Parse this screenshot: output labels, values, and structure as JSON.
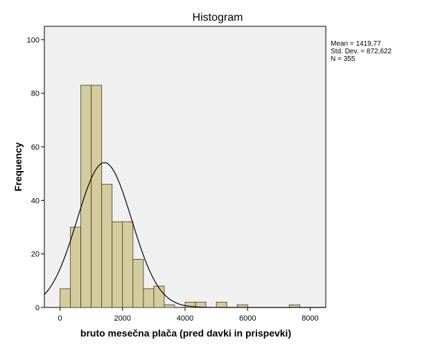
{
  "chart_data": {
    "type": "bar",
    "title": "Histogram",
    "xlabel": "bruto mesečna plača (pred davki in prispevki)",
    "ylabel": "Frequency",
    "xlim": [
      -500,
      8500
    ],
    "ylim": [
      0,
      105
    ],
    "x_ticks": [
      0,
      2000,
      4000,
      6000,
      8000
    ],
    "y_ticks": [
      0,
      20,
      40,
      60,
      80,
      100
    ],
    "bin_width": 333.3,
    "bins": [
      {
        "start": 0,
        "value": 7
      },
      {
        "start": 333.3,
        "value": 30
      },
      {
        "start": 666.7,
        "value": 83
      },
      {
        "start": 1000,
        "value": 83
      },
      {
        "start": 1333.3,
        "value": 46
      },
      {
        "start": 1666.7,
        "value": 32
      },
      {
        "start": 2000,
        "value": 32
      },
      {
        "start": 2333.3,
        "value": 18
      },
      {
        "start": 2666.7,
        "value": 7
      },
      {
        "start": 3000,
        "value": 8
      },
      {
        "start": 3333.3,
        "value": 1
      },
      {
        "start": 3666.7,
        "value": 0
      },
      {
        "start": 4000,
        "value": 2
      },
      {
        "start": 4333.3,
        "value": 2
      },
      {
        "start": 4666.7,
        "value": 0
      },
      {
        "start": 5000,
        "value": 2
      },
      {
        "start": 5333.3,
        "value": 0
      },
      {
        "start": 5666.7,
        "value": 1
      },
      {
        "start": 6000,
        "value": 0
      },
      {
        "start": 6333.3,
        "value": 0
      },
      {
        "start": 6666.7,
        "value": 0
      },
      {
        "start": 7000,
        "value": 0
      },
      {
        "start": 7333.3,
        "value": 1
      }
    ],
    "normal_curve": {
      "mean": 1419.77,
      "std_dev": 872.622,
      "n": 355
    },
    "stats_text": [
      "Mean = 1419,77",
      "Std. Dev. = 872,622",
      "N = 355"
    ],
    "colors": {
      "bar_fill": "#d4cc9c",
      "bar_stroke": "#3a3a2a",
      "plot_bg": "#f0f0f0",
      "curve": "#000000"
    },
    "grid": false
  }
}
